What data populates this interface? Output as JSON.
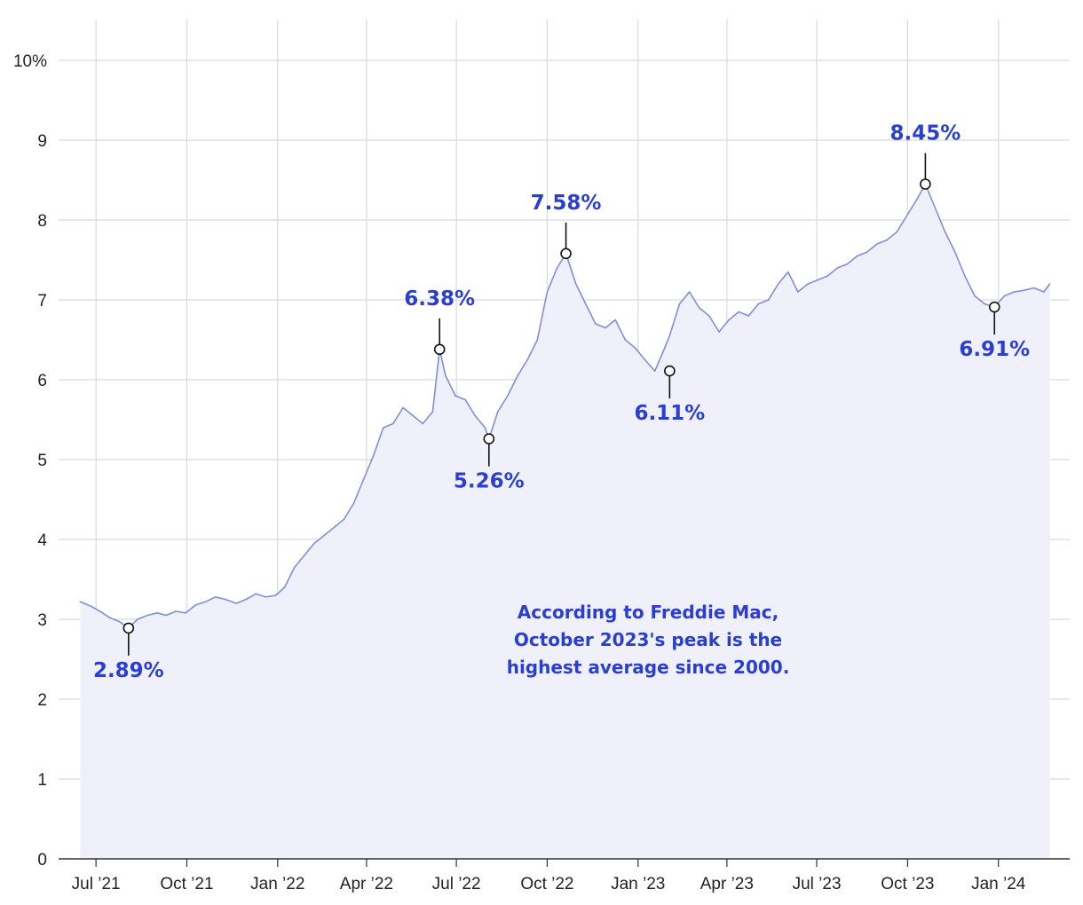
{
  "chart_data": {
    "type": "area",
    "y_tick_labels": [
      "0",
      "1",
      "2",
      "3",
      "4",
      "5",
      "6",
      "7",
      "8",
      "9",
      "10%"
    ],
    "y_ticks": [
      0,
      1,
      2,
      3,
      4,
      5,
      6,
      7,
      8,
      9,
      10
    ],
    "ylim": [
      0,
      10
    ],
    "xlim": [
      "2021-06-12",
      "2024-02-26"
    ],
    "x_ticks": [
      {
        "date": "2021-07-01",
        "label": "Jul ’21"
      },
      {
        "date": "2021-10-01",
        "label": "Oct ’21"
      },
      {
        "date": "2022-01-01",
        "label": "Jan ’22"
      },
      {
        "date": "2022-04-01",
        "label": "Apr ’22"
      },
      {
        "date": "2022-07-01",
        "label": "Jul ’22"
      },
      {
        "date": "2022-10-01",
        "label": "Oct ’22"
      },
      {
        "date": "2023-01-01",
        "label": "Jan ’23"
      },
      {
        "date": "2023-04-01",
        "label": "Apr ’23"
      },
      {
        "date": "2023-07-01",
        "label": "Jul ’23"
      },
      {
        "date": "2023-10-01",
        "label": "Oct ’23"
      },
      {
        "date": "2024-01-01",
        "label": "Jan ’24"
      }
    ],
    "grid": true,
    "series": [
      {
        "color": "#7f8fd8",
        "fill": "#eff0fa",
        "x": [
          "2021-06-15",
          "2021-06-25",
          "2021-07-05",
          "2021-07-15",
          "2021-07-25",
          "2021-08-03",
          "2021-08-12",
          "2021-08-22",
          "2021-09-01",
          "2021-09-10",
          "2021-09-20",
          "2021-09-30",
          "2021-10-10",
          "2021-10-20",
          "2021-10-30",
          "2021-11-09",
          "2021-11-20",
          "2021-11-30",
          "2021-12-10",
          "2021-12-20",
          "2021-12-30",
          "2022-01-08",
          "2022-01-18",
          "2022-01-28",
          "2022-02-07",
          "2022-02-17",
          "2022-02-27",
          "2022-03-09",
          "2022-03-19",
          "2022-03-29",
          "2022-04-08",
          "2022-04-18",
          "2022-04-28",
          "2022-05-08",
          "2022-05-18",
          "2022-05-28",
          "2022-06-07",
          "2022-06-14",
          "2022-06-20",
          "2022-06-30",
          "2022-07-10",
          "2022-07-20",
          "2022-07-30",
          "2022-08-03",
          "2022-08-12",
          "2022-08-22",
          "2022-09-01",
          "2022-09-11",
          "2022-09-21",
          "2022-10-01",
          "2022-10-11",
          "2022-10-20",
          "2022-10-30",
          "2022-11-09",
          "2022-11-19",
          "2022-11-29",
          "2022-12-09",
          "2022-12-19",
          "2022-12-29",
          "2023-01-08",
          "2023-01-18",
          "2023-01-28",
          "2023-02-02",
          "2023-02-12",
          "2023-02-22",
          "2023-03-04",
          "2023-03-14",
          "2023-03-24",
          "2023-04-03",
          "2023-04-13",
          "2023-04-23",
          "2023-05-03",
          "2023-05-13",
          "2023-05-23",
          "2023-06-02",
          "2023-06-12",
          "2023-06-22",
          "2023-07-02",
          "2023-07-12",
          "2023-07-22",
          "2023-08-01",
          "2023-08-11",
          "2023-08-21",
          "2023-08-31",
          "2023-09-10",
          "2023-09-20",
          "2023-09-30",
          "2023-10-10",
          "2023-10-19",
          "2023-10-29",
          "2023-11-08",
          "2023-11-18",
          "2023-11-28",
          "2023-12-08",
          "2023-12-18",
          "2023-12-28",
          "2024-01-07",
          "2024-01-17",
          "2024-01-27",
          "2024-02-06",
          "2024-02-16",
          "2024-02-22"
        ],
        "y": [
          3.22,
          3.17,
          3.1,
          3.02,
          2.97,
          2.89,
          3.0,
          3.05,
          3.08,
          3.05,
          3.1,
          3.08,
          3.18,
          3.22,
          3.28,
          3.25,
          3.2,
          3.25,
          3.32,
          3.28,
          3.3,
          3.4,
          3.65,
          3.8,
          3.95,
          4.05,
          4.15,
          4.25,
          4.45,
          4.75,
          5.05,
          5.4,
          5.45,
          5.65,
          5.55,
          5.45,
          5.6,
          6.38,
          6.05,
          5.8,
          5.75,
          5.55,
          5.4,
          5.26,
          5.6,
          5.8,
          6.05,
          6.25,
          6.5,
          7.1,
          7.4,
          7.58,
          7.2,
          6.95,
          6.7,
          6.65,
          6.75,
          6.5,
          6.4,
          6.25,
          6.11,
          6.4,
          6.55,
          6.95,
          7.1,
          6.9,
          6.8,
          6.6,
          6.75,
          6.85,
          6.8,
          6.95,
          7.0,
          7.2,
          7.35,
          7.1,
          7.2,
          7.25,
          7.3,
          7.4,
          7.45,
          7.55,
          7.6,
          7.7,
          7.75,
          7.85,
          8.05,
          8.25,
          8.45,
          8.15,
          7.85,
          7.6,
          7.3,
          7.05,
          6.95,
          6.91,
          7.05,
          7.1,
          7.12,
          7.15,
          7.1,
          7.2
        ]
      }
    ],
    "annotations": [
      {
        "x": "2021-08-03",
        "y": 2.89,
        "label": "2.89%",
        "position": "below"
      },
      {
        "x": "2022-06-14",
        "y": 6.38,
        "label": "6.38%",
        "position": "above"
      },
      {
        "x": "2022-08-03",
        "y": 5.26,
        "label": "5.26%",
        "position": "below"
      },
      {
        "x": "2022-10-20",
        "y": 7.58,
        "label": "7.58%",
        "position": "above"
      },
      {
        "x": "2023-02-02",
        "y": 6.11,
        "label": "6.11%",
        "position": "below"
      },
      {
        "x": "2023-10-19",
        "y": 8.45,
        "label": "8.45%",
        "position": "above"
      },
      {
        "x": "2023-12-28",
        "y": 6.91,
        "label": "6.91%",
        "position": "below"
      }
    ],
    "note": [
      "According to Freddie Mac,",
      "October 2023's peak is the",
      "highest average since 2000."
    ],
    "annotation_color": "#2a3fd0"
  }
}
